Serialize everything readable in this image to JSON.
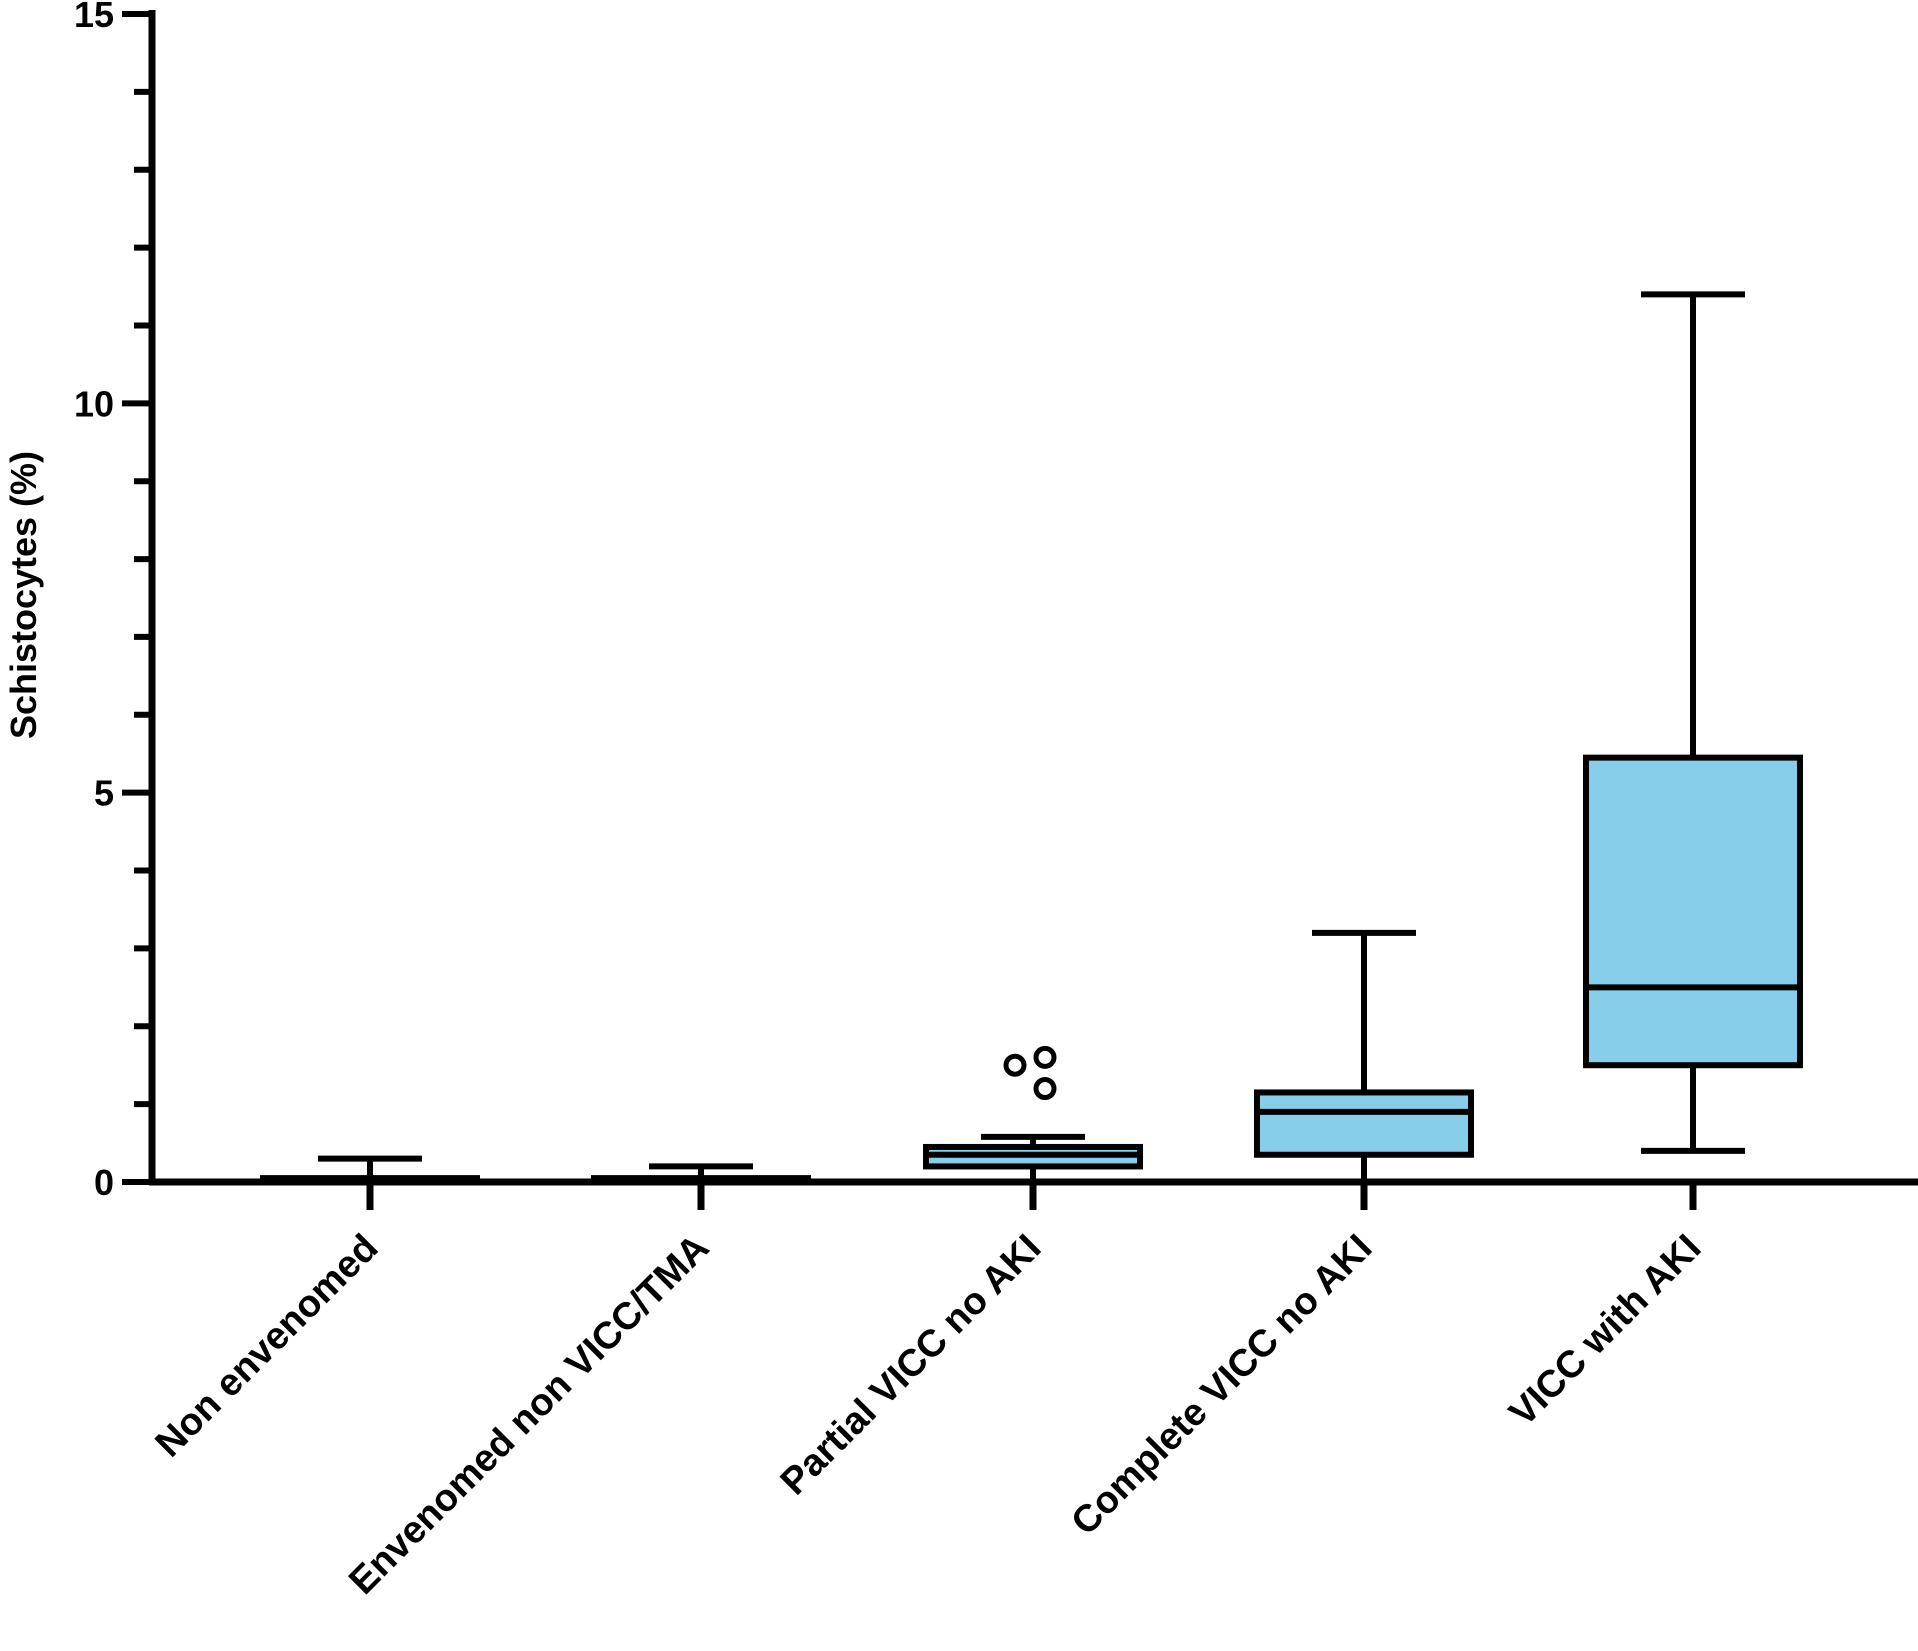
{
  "chart_data": {
    "type": "box",
    "ylabel": "Schistocytes (%)",
    "xlabel": "",
    "ylim": [
      0,
      15
    ],
    "yticks_major": [
      0,
      5,
      10,
      15
    ],
    "yticks_minor_step": 1,
    "box_color": "#87CEEB",
    "line_color": "#000000",
    "categories": [
      "Non envenomed",
      "Envenomed non VICC/TMA",
      "Partial VICC no AKI",
      "Complete VICC no AKI",
      "VICC with AKI"
    ],
    "boxes": [
      {
        "whisker_low": 0,
        "q1": 0,
        "median": 0,
        "q3": 0.05,
        "whisker_high": 0.3,
        "outliers": []
      },
      {
        "whisker_low": 0,
        "q1": 0,
        "median": 0,
        "q3": 0.05,
        "whisker_high": 0.2,
        "outliers": []
      },
      {
        "whisker_low": 0,
        "q1": 0.2,
        "median": 0.35,
        "q3": 0.45,
        "whisker_high": 0.58,
        "outliers": [
          1.2,
          1.5,
          1.6
        ]
      },
      {
        "whisker_low": 0,
        "q1": 0.35,
        "median": 0.9,
        "q3": 1.15,
        "whisker_high": 3.2,
        "outliers": []
      },
      {
        "whisker_low": 0.4,
        "q1": 1.5,
        "median": 2.5,
        "q3": 5.45,
        "whisker_high": 11.4,
        "outliers": []
      }
    ]
  }
}
